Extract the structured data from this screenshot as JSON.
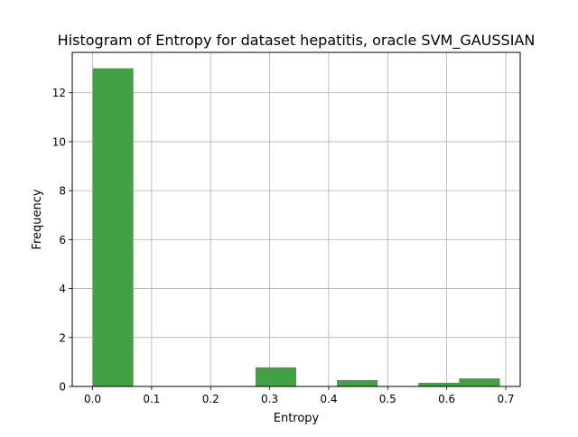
{
  "chart_data": {
    "type": "bar",
    "title": "Histogram of Entropy for dataset hepatitis, oracle SVM_GAUSSIAN",
    "xlabel": "Entropy",
    "ylabel": "Frequency",
    "bins": [
      {
        "start": 0.0,
        "end": 0.069,
        "value": 13.0
      },
      {
        "start": 0.069,
        "end": 0.138,
        "value": 0.0
      },
      {
        "start": 0.138,
        "end": 0.207,
        "value": 0.0
      },
      {
        "start": 0.207,
        "end": 0.276,
        "value": 0.0
      },
      {
        "start": 0.276,
        "end": 0.345,
        "value": 0.78
      },
      {
        "start": 0.345,
        "end": 0.414,
        "value": 0.0
      },
      {
        "start": 0.414,
        "end": 0.483,
        "value": 0.26
      },
      {
        "start": 0.483,
        "end": 0.552,
        "value": 0.0
      },
      {
        "start": 0.552,
        "end": 0.621,
        "value": 0.15
      },
      {
        "start": 0.621,
        "end": 0.69,
        "value": 0.33
      }
    ],
    "xlim": [
      -0.0345,
      0.7245
    ],
    "ylim": [
      0,
      13.65
    ],
    "xticks": [
      0.0,
      0.1,
      0.2,
      0.3,
      0.4,
      0.5,
      0.6,
      0.7
    ],
    "xtick_labels": [
      "0.0",
      "0.1",
      "0.2",
      "0.3",
      "0.4",
      "0.5",
      "0.6",
      "0.7"
    ],
    "yticks": [
      0,
      2,
      4,
      6,
      8,
      10,
      12
    ],
    "ytick_labels": [
      "0",
      "2",
      "4",
      "6",
      "8",
      "10",
      "12"
    ],
    "grid": true,
    "bar_color": "#44a044",
    "legend": "none"
  }
}
